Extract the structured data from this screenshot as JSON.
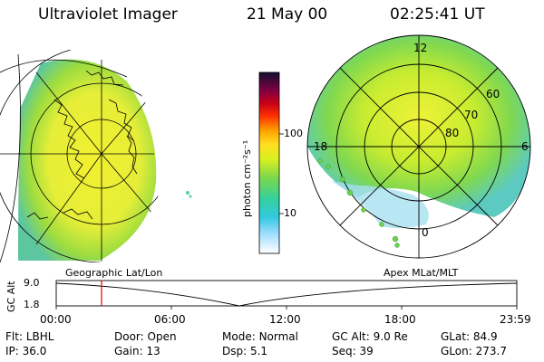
{
  "header": {
    "instrument": "Ultraviolet Imager",
    "date": "21 May 00",
    "time": "02:25:41 UT"
  },
  "colorbar": {
    "units": "photon cm⁻²s⁻¹",
    "ticks": [
      "100",
      "10"
    ]
  },
  "panels": {
    "left_label": "Geographic Lat/Lon",
    "right_label": "Apex MLat/MLT"
  },
  "polar_plot": {
    "mlt_labels": [
      "12",
      "18",
      "6",
      "0"
    ],
    "lat_labels": [
      "60",
      "70",
      "80"
    ]
  },
  "altitude_plot": {
    "ylabel": "GC Alt",
    "yticks": [
      "9.0",
      "1.8"
    ],
    "xticks": [
      "00:00",
      "06:00",
      "12:00",
      "18:00",
      "23:59"
    ],
    "current_marker_color": "#dd0000"
  },
  "status": {
    "row1": [
      {
        "label": "Flt:",
        "value": "LBHL"
      },
      {
        "label": "Door:",
        "value": "Open"
      },
      {
        "label": "Mode:",
        "value": "Normal"
      },
      {
        "label": "GC Alt:",
        "value": "9.0 Re"
      },
      {
        "label": "GLat:",
        "value": "84.9"
      }
    ],
    "row2": [
      {
        "label": "IP:",
        "value": "36.0"
      },
      {
        "label": "Gain:",
        "value": "13"
      },
      {
        "label": "Dsp:",
        "value": "5.1"
      },
      {
        "label": "Seq:",
        "value": "39"
      },
      {
        "label": "GLon:",
        "value": "273.7"
      }
    ]
  }
}
